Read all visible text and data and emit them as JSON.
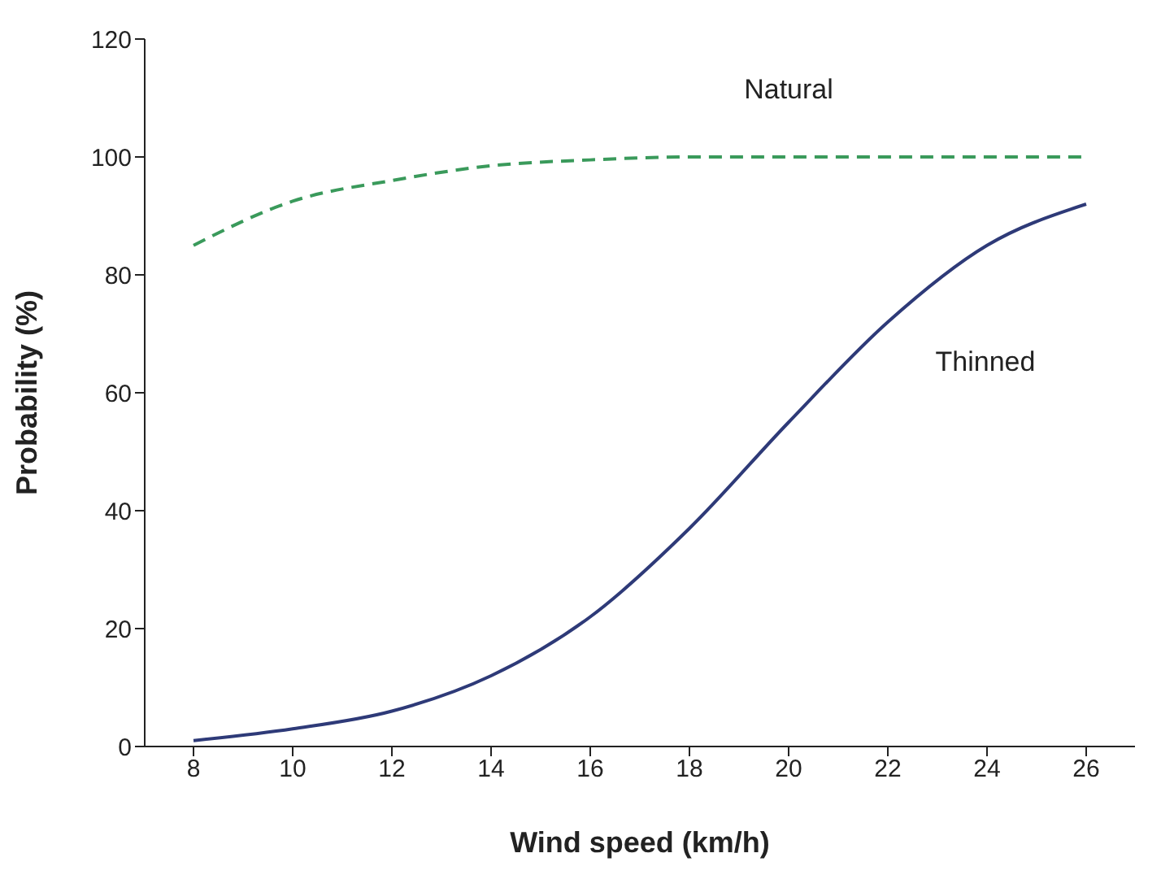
{
  "chart_data": {
    "type": "line",
    "xlabel": "Wind speed (km/h)",
    "ylabel": "Probability (%)",
    "categories": [
      "8",
      "10",
      "12",
      "14",
      "16",
      "18",
      "20",
      "22",
      "24",
      "26"
    ],
    "series": [
      {
        "name": "Natural",
        "color": "#3a9a5b",
        "line_style": "dashed",
        "values": [
          85,
          92.5,
          96,
          98.5,
          99.5,
          100,
          100,
          100,
          100,
          100
        ]
      },
      {
        "name": "Thinned",
        "color": "#2e3a78",
        "line_style": "solid",
        "values": [
          1,
          3,
          6,
          12,
          22,
          37,
          55,
          72,
          85,
          92
        ]
      }
    ],
    "ylim": [
      0,
      120
    ],
    "yticks": [
      0,
      20,
      40,
      60,
      80,
      100,
      120
    ],
    "grid": false,
    "legend": false,
    "marker": "none"
  }
}
